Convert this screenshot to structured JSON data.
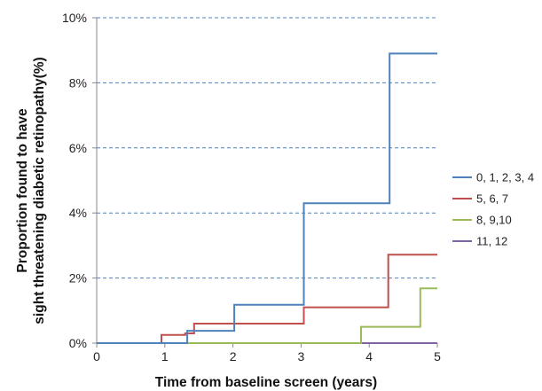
{
  "chart_data": {
    "type": "line",
    "step": true,
    "xlabel": "Time from baseline screen (years)",
    "ylabel_line1": "Proportion found to have",
    "ylabel_line2": "sight threatening  diabetic retinopathy(%)",
    "xlim": [
      0,
      5
    ],
    "ylim": [
      0,
      10
    ],
    "x_ticks": [
      0,
      1,
      2,
      3,
      4,
      5
    ],
    "x_tick_labels": [
      "0",
      "1",
      "2",
      "3",
      "4",
      "5"
    ],
    "y_ticks": [
      0,
      2,
      4,
      6,
      8,
      10
    ],
    "y_tick_labels": [
      "0%",
      "2%",
      "4%",
      "6%",
      "8%",
      "10%"
    ],
    "grid": "horizontal-dashed",
    "legend_position": "right",
    "series": [
      {
        "name": "11, 12",
        "color": "#8064a2",
        "points": [
          [
            0,
            0
          ],
          [
            5,
            0
          ]
        ]
      },
      {
        "name": "8, 9,10",
        "color": "#9bbb59",
        "points": [
          [
            0,
            0
          ],
          [
            3.88,
            0
          ],
          [
            3.88,
            0.5
          ],
          [
            4.75,
            0.5
          ],
          [
            4.75,
            1.68
          ],
          [
            5,
            1.68
          ]
        ]
      },
      {
        "name": "5, 6, 7",
        "color": "#c0504d",
        "points": [
          [
            0,
            0
          ],
          [
            0.95,
            0
          ],
          [
            0.95,
            0.25
          ],
          [
            1.3,
            0.25
          ],
          [
            1.3,
            0.3
          ],
          [
            1.43,
            0.3
          ],
          [
            1.43,
            0.6
          ],
          [
            3.04,
            0.6
          ],
          [
            3.04,
            1.1
          ],
          [
            4.28,
            1.1
          ],
          [
            4.28,
            2.72
          ],
          [
            5,
            2.72
          ]
        ]
      },
      {
        "name": "0, 1, 2, 3, 4",
        "color": "#4f81bd",
        "points": [
          [
            0,
            0
          ],
          [
            1.33,
            0
          ],
          [
            1.33,
            0.38
          ],
          [
            2.02,
            0.38
          ],
          [
            2.02,
            1.18
          ],
          [
            3.04,
            1.18
          ],
          [
            3.04,
            4.3
          ],
          [
            4.3,
            4.3
          ],
          [
            4.3,
            8.9
          ],
          [
            5,
            8.9
          ]
        ]
      }
    ]
  }
}
